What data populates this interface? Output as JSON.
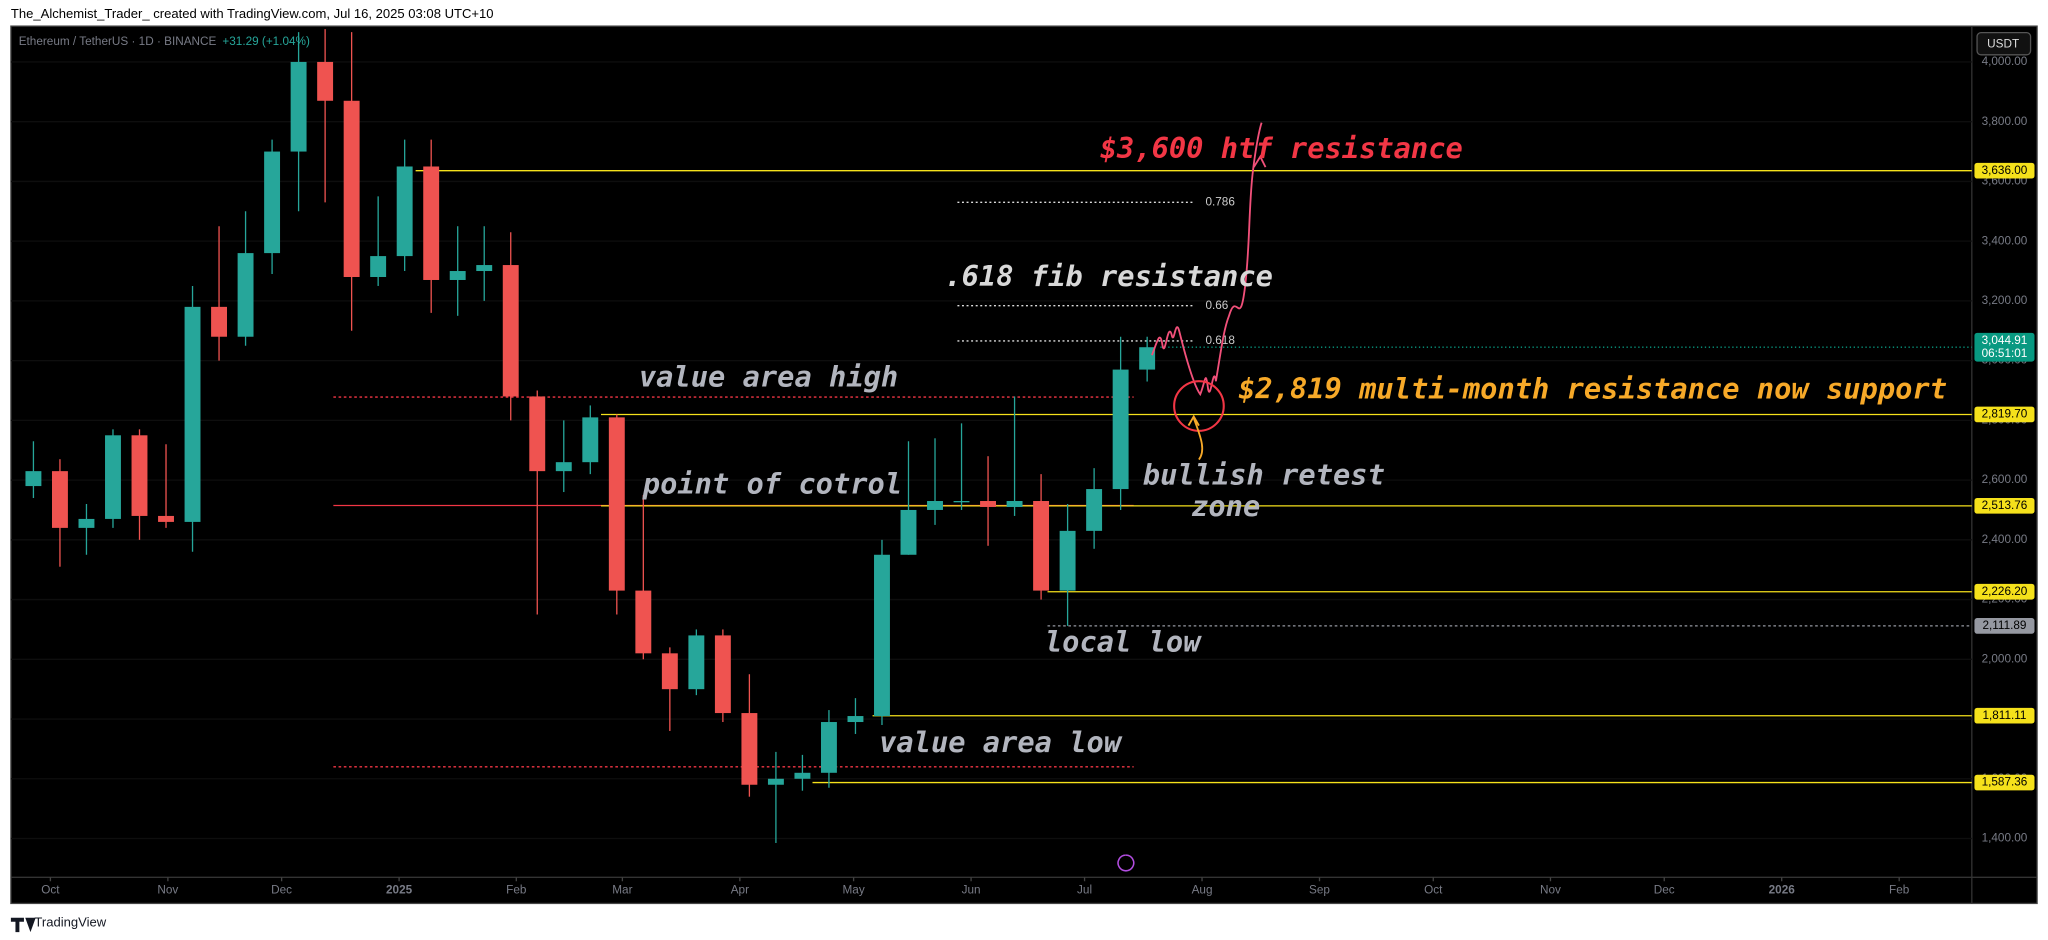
{
  "chart_data": {
    "type": "candlestick",
    "title": "Ethereum / TetherUS · 1D · BINANCE",
    "change": "+31.29 (+1.04%)",
    "currency": "USDT",
    "ohlc": {
      "open": [
        2580,
        2630,
        2440,
        2470,
        2750,
        2480,
        2460,
        3180,
        3080,
        3360,
        3700,
        4000,
        3870,
        3280,
        3350,
        3650,
        3270,
        3300,
        3320,
        2880,
        2630,
        2660,
        2810,
        2230,
        2020,
        1900,
        2080,
        1820,
        1580,
        1600,
        1620,
        1790,
        1810,
        2350,
        2500,
        2530,
        2530,
        2510,
        2530,
        2230,
        2430,
        2570,
        2970
      ],
      "high": [
        2730,
        2670,
        2520,
        2770,
        2770,
        2720,
        3250,
        3450,
        3500,
        3740,
        4100,
        4110,
        4100,
        3550,
        3740,
        3740,
        3450,
        3450,
        3430,
        2900,
        2800,
        2850,
        2820,
        2550,
        2040,
        2100,
        2100,
        1950,
        1690,
        1680,
        1830,
        1870,
        2400,
        2730,
        2740,
        2790,
        2680,
        2880,
        2620,
        2520,
        2640,
        3080,
        3080
      ],
      "low": [
        2540,
        2310,
        2350,
        2440,
        2400,
        2440,
        2360,
        3000,
        3050,
        3290,
        3500,
        3530,
        3100,
        3250,
        3300,
        3160,
        3150,
        3200,
        2800,
        2150,
        2560,
        2620,
        2150,
        2000,
        1760,
        1880,
        1790,
        1540,
        1385,
        1560,
        1570,
        1750,
        1780,
        2350,
        2450,
        2500,
        2380,
        2480,
        2200,
        2111.89,
        2370,
        2500,
        2930
      ],
      "close": [
        2630,
        2440,
        2470,
        2750,
        2480,
        2460,
        3180,
        3080,
        3360,
        3700,
        4000,
        3870,
        3280,
        3350,
        3650,
        3270,
        3300,
        3320,
        2880,
        2630,
        2660,
        2810,
        2230,
        2020,
        1900,
        2080,
        1820,
        1580,
        1600,
        1620,
        1790,
        1810,
        2350,
        2500,
        2530,
        2530,
        2510,
        2530,
        2230,
        2430,
        2570,
        2970,
        3044.91
      ]
    },
    "up_color": "#26a69a",
    "down_color": "#ef5350",
    "ylim": [
      1270,
      4120
    ],
    "yticks": [
      {
        "value": 1400,
        "label": "1,400.00"
      },
      {
        "value": 1600,
        "label": "1,600.00"
      },
      {
        "value": 1800,
        "label": "1,800.00"
      },
      {
        "value": 2000,
        "label": "2,000.00"
      },
      {
        "value": 2200,
        "label": "2,200.00"
      },
      {
        "value": 2400,
        "label": "2,400.00"
      },
      {
        "value": 2600,
        "label": "2,600.00"
      },
      {
        "value": 2800,
        "label": "2,800.00"
      },
      {
        "value": 3000,
        "label": "3,000.00"
      },
      {
        "value": 3200,
        "label": "3,200.00"
      },
      {
        "value": 3400,
        "label": "3,400.00"
      },
      {
        "value": 3600,
        "label": "3,600.00"
      },
      {
        "value": 3800,
        "label": "3,800.00"
      },
      {
        "value": 4000,
        "label": "4,000.00"
      }
    ],
    "xlim": [
      -0.35,
      73.6
    ],
    "xticks": [
      {
        "value": 1.14,
        "label": "Oct"
      },
      {
        "value": 5.57,
        "label": "Nov"
      },
      {
        "value": 9.86,
        "label": "Dec"
      },
      {
        "value": 14.29,
        "label": "2025"
      },
      {
        "value": 18.71,
        "label": "Feb"
      },
      {
        "value": 22.71,
        "label": "Mar"
      },
      {
        "value": 27.14,
        "label": "Apr"
      },
      {
        "value": 31.43,
        "label": "May"
      },
      {
        "value": 35.86,
        "label": "Jun"
      },
      {
        "value": 40.14,
        "label": "Jul"
      },
      {
        "value": 44.57,
        "label": "Aug"
      },
      {
        "value": 49,
        "label": "Sep"
      },
      {
        "value": 53.29,
        "label": "Oct"
      },
      {
        "value": 57.71,
        "label": "Nov"
      },
      {
        "value": 62,
        "label": "Dec"
      },
      {
        "value": 66.43,
        "label": "2026"
      },
      {
        "value": 70.86,
        "label": "Feb"
      }
    ],
    "levels": [
      {
        "value": 3636,
        "label": "3,636.00",
        "color": "#f5e11b"
      },
      {
        "value": 2819.7,
        "label": "2,819.70",
        "color": "#f5e11b"
      },
      {
        "value": 2513.76,
        "label": "2,513.76",
        "color": "#f5e11b"
      },
      {
        "value": 2226.2,
        "label": "2,226.20",
        "color": "#f5e11b"
      },
      {
        "value": 2111.89,
        "label": "2,111.89",
        "color": "#9598a1"
      },
      {
        "value": 1811.11,
        "label": "1,811.11",
        "color": "#f5e11b"
      },
      {
        "value": 1587.36,
        "label": "1,587.36",
        "color": "#f5e11b"
      }
    ],
    "last_price": {
      "value": 3044.91,
      "label": "3,044.91",
      "countdown": "06:51:01",
      "color": "#089981"
    },
    "fib_levels": [
      {
        "ratio": 0.786,
        "price": 3530
      },
      {
        "ratio": 0.66,
        "price": 3184
      },
      {
        "ratio": 0.618,
        "price": 3066
      }
    ],
    "volume_profile": {
      "value_area_high": 2878,
      "point_of_control": 2515,
      "value_area_low": 1640,
      "color": "#f23645"
    },
    "annotations": {
      "htf": "$3,600 htf resistance",
      "fib": ".618 fib resistance",
      "vah": "value area high",
      "poc": "point of cotrol",
      "retest": [
        "bullish retest",
        "zone"
      ],
      "support": "$2,819 multi-month resistance now support",
      "local_low": "local low",
      "val": "value area low"
    }
  },
  "page": {
    "byline": "The_Alchemist_Trader_ created with TradingView.com, Jul 16, 2025 03:08 UTC+10",
    "footer": "TradingView"
  }
}
